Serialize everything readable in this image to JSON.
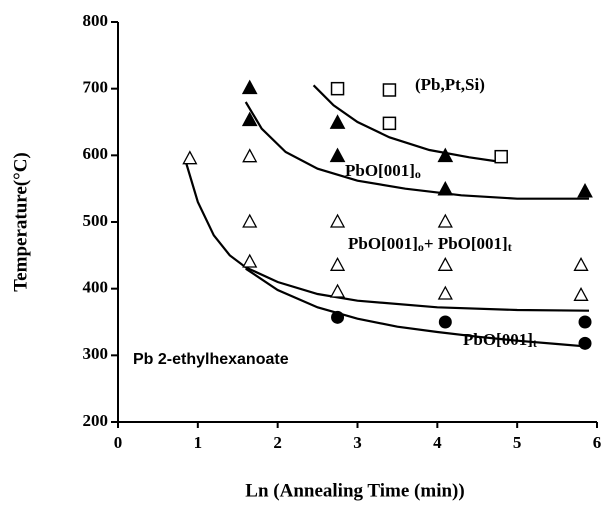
{
  "chart_data": {
    "type": "scatter",
    "y_label": "Temperature(°C)",
    "x_label": "Ln (Annealing Time (min))",
    "xlim": [
      0,
      6
    ],
    "ylim": [
      200,
      800
    ],
    "xticks": [
      0,
      1,
      2,
      3,
      4,
      5,
      6
    ],
    "yticks": [
      200,
      300,
      400,
      500,
      600,
      700,
      800
    ],
    "series": [
      {
        "marker": "square-open",
        "color": "#000000",
        "x": [
          2.75,
          3.4,
          3.4,
          4.8
        ],
        "values": [
          700,
          698,
          648,
          598
        ]
      },
      {
        "marker": "triangle-filled",
        "color": "#000000",
        "x": [
          1.65,
          1.65,
          2.75,
          2.75,
          4.1,
          4.1,
          5.85
        ],
        "values": [
          700,
          652,
          648,
          598,
          598,
          548,
          545
        ]
      },
      {
        "marker": "triangle-open",
        "color": "#000000",
        "x": [
          0.9,
          1.65,
          1.65,
          1.65,
          2.75,
          2.75,
          2.75,
          4.1,
          4.1,
          4.1,
          5.8,
          5.8
        ],
        "values": [
          595,
          598,
          500,
          440,
          500,
          435,
          395,
          500,
          435,
          392,
          435,
          390
        ]
      },
      {
        "marker": "circle-filled",
        "color": "#000000",
        "x": [
          2.75,
          4.1,
          5.85,
          5.85
        ],
        "values": [
          357,
          350,
          350,
          318
        ]
      }
    ],
    "curves": [
      {
        "color": "#000000",
        "x": [
          2.45,
          2.7,
          3.0,
          3.4,
          3.9,
          4.4,
          4.8
        ],
        "values": [
          705,
          675,
          650,
          627,
          608,
          597,
          590
        ]
      },
      {
        "color": "#000000",
        "x": [
          1.6,
          1.8,
          2.1,
          2.5,
          3.0,
          3.6,
          4.3,
          5.0,
          5.9
        ],
        "values": [
          680,
          640,
          605,
          580,
          562,
          550,
          540,
          535,
          535
        ]
      },
      {
        "color": "#000000",
        "x": [
          0.85,
          1.0,
          1.2,
          1.4,
          1.6,
          2.0,
          2.5,
          3.0,
          4.0,
          5.0,
          5.9
        ],
        "values": [
          590,
          530,
          480,
          450,
          432,
          410,
          392,
          382,
          372,
          368,
          367
        ]
      },
      {
        "color": "#000000",
        "x": [
          1.6,
          2.0,
          2.5,
          3.0,
          3.5,
          4.0,
          4.5,
          5.0,
          5.5,
          5.9
        ],
        "values": [
          430,
          398,
          372,
          355,
          343,
          335,
          328,
          322,
          317,
          313
        ]
      }
    ],
    "annotations": [
      {
        "parts": [
          {
            "text": "(Pb,Pt,Si)",
            "sub": false
          }
        ]
      },
      {
        "parts": [
          {
            "text": "PbO[001]",
            "sub": false
          },
          {
            "text": "o",
            "sub": true
          }
        ]
      },
      {
        "parts": [
          {
            "text": "PbO[001]",
            "sub": false
          },
          {
            "text": "o",
            "sub": true
          },
          {
            "text": "+ PbO[001]",
            "sub": false
          },
          {
            "text": "t",
            "sub": true
          }
        ]
      },
      {
        "parts": [
          {
            "text": "PbO[001]",
            "sub": false
          },
          {
            "text": "t",
            "sub": true
          }
        ]
      },
      {
        "parts": [
          {
            "text": "Pb 2-ethylhexanoate",
            "sub": false
          }
        ]
      }
    ]
  }
}
